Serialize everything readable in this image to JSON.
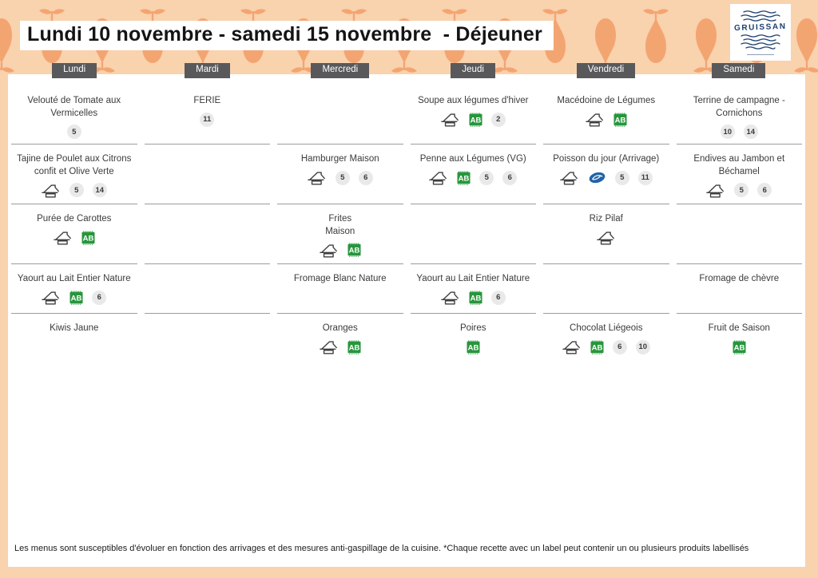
{
  "header": {
    "title": "Lundi 10 novembre - samedi 15 novembre  - Déjeuner",
    "logo_name": "GRUISSAN"
  },
  "colors": {
    "band_bg": "#f9d2ae",
    "pear": "#f3a571",
    "chip_bg": "#59595b",
    "divider": "#9c9c9c",
    "ab_green": "#27963c",
    "fish_blue": "#2363a9",
    "icon_stroke": "#3f3f3f",
    "logo_navy": "#1c3f6e"
  },
  "icon_legend": {
    "fait-maison": "fait-maison-icon",
    "ab-bio": "ab-bio-icon",
    "msc-fish": "sustainable-fish-icon"
  },
  "menu": {
    "days": [
      {
        "label": "Lundi",
        "cells": [
          {
            "name": "Velouté de Tomate aux Vermicelles",
            "icons": [],
            "badges": [
              "5"
            ]
          },
          {
            "name": "Tajine de Poulet aux Citrons confit et Olive Verte",
            "icons": [
              "fait-maison"
            ],
            "badges": [
              "5",
              "14"
            ]
          },
          {
            "name": "Purée de Carottes",
            "icons": [
              "fait-maison",
              "ab-bio"
            ],
            "badges": []
          },
          {
            "name": "Yaourt au Lait Entier Nature",
            "icons": [
              "fait-maison",
              "ab-bio"
            ],
            "badges": [
              "6"
            ]
          },
          {
            "name": "Kiwis Jaune",
            "icons": [],
            "badges": []
          }
        ]
      },
      {
        "label": "Mardi",
        "cells": [
          {
            "name": "FERIE",
            "icons": [],
            "badges": [
              "11"
            ]
          },
          {
            "name": "",
            "icons": [],
            "badges": []
          },
          {
            "name": "",
            "icons": [],
            "badges": []
          },
          {
            "name": "",
            "icons": [],
            "badges": []
          },
          {
            "name": "",
            "icons": [],
            "badges": []
          }
        ]
      },
      {
        "label": "Mercredi",
        "cells": [
          {
            "name": "",
            "icons": [],
            "badges": []
          },
          {
            "name": "Hamburger Maison",
            "icons": [
              "fait-maison"
            ],
            "badges": [
              "5",
              "6"
            ]
          },
          {
            "name": "Frites\nMaison",
            "icons": [
              "fait-maison",
              "ab-bio"
            ],
            "badges": []
          },
          {
            "name": "Fromage Blanc Nature",
            "icons": [],
            "badges": []
          },
          {
            "name": "Oranges",
            "icons": [
              "fait-maison",
              "ab-bio"
            ],
            "badges": []
          }
        ]
      },
      {
        "label": "Jeudi",
        "cells": [
          {
            "name": "Soupe aux légumes d'hiver",
            "icons": [
              "fait-maison",
              "ab-bio"
            ],
            "badges": [
              "2"
            ]
          },
          {
            "name": "Penne aux Légumes (VG)",
            "icons": [
              "fait-maison",
              "ab-bio"
            ],
            "badges": [
              "5",
              "6"
            ]
          },
          {
            "name": "",
            "icons": [],
            "badges": []
          },
          {
            "name": "Yaourt au Lait Entier Nature",
            "icons": [
              "fait-maison",
              "ab-bio"
            ],
            "badges": [
              "6"
            ]
          },
          {
            "name": "Poires",
            "icons": [
              "ab-bio"
            ],
            "badges": []
          }
        ]
      },
      {
        "label": "Vendredi",
        "cells": [
          {
            "name": "Macédoine de Légumes",
            "icons": [
              "fait-maison",
              "ab-bio"
            ],
            "badges": []
          },
          {
            "name": "Poisson du jour (Arrivage)",
            "icons": [
              "fait-maison",
              "msc-fish"
            ],
            "badges": [
              "5",
              "11"
            ]
          },
          {
            "name": "Riz Pilaf",
            "icons": [
              "fait-maison"
            ],
            "badges": []
          },
          {
            "name": "",
            "icons": [],
            "badges": []
          },
          {
            "name": "Chocolat Liégeois",
            "icons": [
              "fait-maison",
              "ab-bio"
            ],
            "badges": [
              "6",
              "10"
            ]
          }
        ]
      },
      {
        "label": "Samedi",
        "cells": [
          {
            "name": "Terrine de campagne - Cornichons",
            "icons": [],
            "badges": [
              "10",
              "14"
            ]
          },
          {
            "name": "Endives au Jambon et Béchamel",
            "icons": [
              "fait-maison"
            ],
            "badges": [
              "5",
              "6"
            ]
          },
          {
            "name": "",
            "icons": [],
            "badges": []
          },
          {
            "name": "Fromage de chèvre",
            "icons": [],
            "badges": []
          },
          {
            "name": "Fruit de Saison",
            "icons": [
              "ab-bio"
            ],
            "badges": []
          }
        ]
      }
    ]
  },
  "footer": {
    "note": "Les menus sont susceptibles d'évoluer en fonction des arrivages et des mesures anti-gaspillage de la cuisine. *Chaque recette avec un label peut contenir un ou plusieurs produits labellisés"
  }
}
